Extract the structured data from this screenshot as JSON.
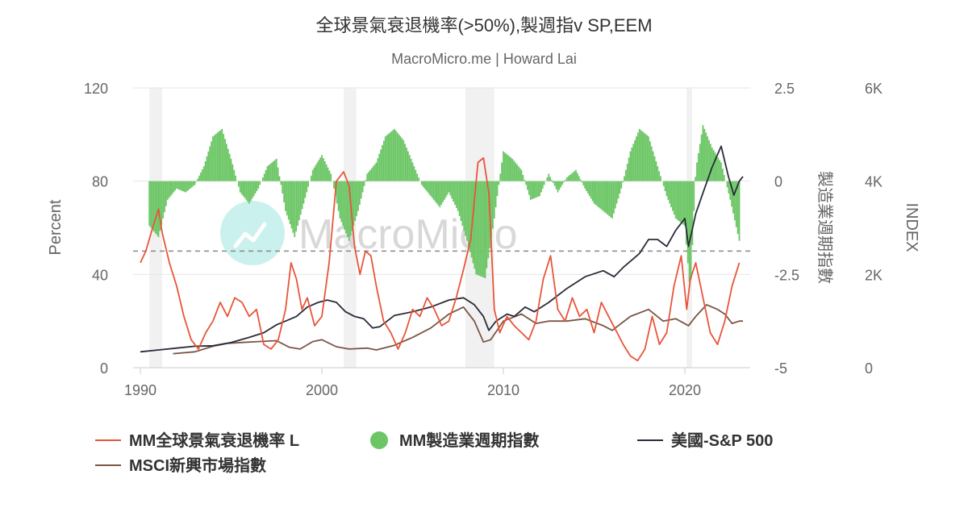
{
  "chart_data": {
    "type": "line",
    "title": "全球景氣衰退機率(>50%),製週指v SP,EEM",
    "subtitle": "MacroMicro.me | Howard Lai",
    "watermark": "MacroMicro",
    "x_axis": {
      "ticks": [
        "1990",
        "2000",
        "2010",
        "2020"
      ],
      "range": [
        1989.6,
        2023.6
      ]
    },
    "y_axes": {
      "left": {
        "title": "Percent",
        "ticks": [
          "120",
          "80",
          "40",
          "0"
        ],
        "range": [
          0,
          120
        ]
      },
      "mid": {
        "title": "製造業週期指數",
        "ticks": [
          "2.5",
          "0",
          "-2.5",
          "-5"
        ],
        "range": [
          -5,
          2.5
        ]
      },
      "right": {
        "title": "INDEX",
        "ticks": [
          "6K",
          "4K",
          "2K",
          "0"
        ],
        "range": [
          0,
          6000
        ]
      }
    },
    "threshold_line": {
      "axis": "left",
      "value": 50,
      "style": "dashed"
    },
    "recession_bands": [
      [
        1990.5,
        1991.2
      ],
      [
        2001.2,
        2001.9
      ],
      [
        2007.9,
        2009.5
      ],
      [
        2020.1,
        2020.4
      ]
    ],
    "legend": [
      {
        "name": "MM全球景氣衰退機率 L",
        "color": "#e8553a",
        "symbol": "line"
      },
      {
        "name": "MM製造業週期指數",
        "color": "#6cc665",
        "symbol": "circle"
      },
      {
        "name": "美國-S&P 500",
        "color": "#2b2b3a",
        "symbol": "line"
      },
      {
        "name": "MSCI新興市場指數",
        "color": "#7b5545",
        "symbol": "line"
      }
    ],
    "series": [
      {
        "name": "MM全球景氣衰退機率 L",
        "axis": "left",
        "type": "line",
        "color": "#e8553a",
        "x": [
          1990.0,
          1990.3,
          1990.6,
          1991.0,
          1991.2,
          1991.6,
          1992.0,
          1992.4,
          1992.8,
          1993.2,
          1993.6,
          1994.0,
          1994.4,
          1994.8,
          1995.2,
          1995.6,
          1996.0,
          1996.4,
          1996.8,
          1997.2,
          1997.6,
          1998.0,
          1998.3,
          1998.6,
          1998.9,
          1999.2,
          1999.6,
          2000.0,
          2000.4,
          2000.8,
          2001.2,
          2001.5,
          2001.8,
          2002.1,
          2002.4,
          2002.7,
          2003.0,
          2003.4,
          2003.8,
          2004.2,
          2004.6,
          2005.0,
          2005.4,
          2005.8,
          2006.2,
          2006.6,
          2007.0,
          2007.4,
          2007.8,
          2008.2,
          2008.6,
          2008.9,
          2009.2,
          2009.5,
          2009.8,
          2010.2,
          2010.6,
          2011.0,
          2011.4,
          2011.8,
          2012.2,
          2012.6,
          2013.0,
          2013.4,
          2013.8,
          2014.2,
          2014.6,
          2015.0,
          2015.4,
          2015.8,
          2016.2,
          2016.6,
          2017.0,
          2017.4,
          2017.8,
          2018.2,
          2018.6,
          2019.0,
          2019.4,
          2019.8,
          2020.1,
          2020.3,
          2020.6,
          2021.0,
          2021.4,
          2021.8,
          2022.2,
          2022.6,
          2023.0
        ],
        "y": [
          45,
          50,
          58,
          68,
          58,
          45,
          35,
          22,
          12,
          8,
          15,
          20,
          28,
          22,
          30,
          28,
          22,
          25,
          10,
          8,
          12,
          25,
          45,
          38,
          25,
          30,
          18,
          22,
          45,
          80,
          84,
          78,
          52,
          40,
          50,
          48,
          35,
          20,
          15,
          8,
          15,
          25,
          22,
          30,
          25,
          18,
          20,
          30,
          42,
          55,
          88,
          90,
          75,
          25,
          15,
          22,
          18,
          15,
          12,
          20,
          38,
          48,
          25,
          20,
          30,
          22,
          25,
          15,
          28,
          22,
          16,
          10,
          5,
          3,
          8,
          22,
          10,
          15,
          35,
          48,
          25,
          38,
          45,
          30,
          15,
          10,
          20,
          35,
          45
        ]
      },
      {
        "name": "MM製造業週期指數",
        "axis": "mid",
        "type": "bar",
        "color": "#6cc665",
        "x": [
          1990.5,
          1991.0,
          1991.5,
          1992.0,
          1992.5,
          1993.0,
          1993.5,
          1994.0,
          1994.5,
          1995.0,
          1995.5,
          1996.0,
          1996.5,
          1997.0,
          1997.5,
          1998.0,
          1998.5,
          1999.0,
          1999.5,
          2000.0,
          2000.5,
          2001.0,
          2001.5,
          2002.0,
          2002.5,
          2003.0,
          2003.5,
          2004.0,
          2004.5,
          2005.0,
          2005.5,
          2006.0,
          2006.5,
          2007.0,
          2007.5,
          2008.0,
          2008.5,
          2009.0,
          2009.5,
          2010.0,
          2010.5,
          2011.0,
          2011.5,
          2012.0,
          2012.5,
          2013.0,
          2013.5,
          2014.0,
          2014.5,
          2015.0,
          2015.5,
          2016.0,
          2016.5,
          2017.0,
          2017.5,
          2018.0,
          2018.5,
          2019.0,
          2019.5,
          2020.0,
          2020.3,
          2020.6,
          2021.0,
          2021.5,
          2022.0,
          2022.5,
          2023.0
        ],
        "y": [
          -1.2,
          -1.5,
          -0.5,
          -0.2,
          -0.3,
          -0.1,
          0.4,
          1.2,
          1.4,
          0.6,
          -0.3,
          -0.6,
          -0.2,
          0.4,
          0.6,
          -0.8,
          -1.5,
          -0.6,
          0.3,
          0.7,
          0.2,
          -1.0,
          -1.6,
          -0.8,
          0.2,
          0.5,
          1.2,
          1.4,
          1.1,
          0.5,
          -0.1,
          -0.4,
          -0.7,
          -0.3,
          -0.8,
          -1.6,
          -2.5,
          -2.6,
          -1.0,
          0.8,
          0.6,
          0.3,
          -0.5,
          -0.4,
          0.2,
          -0.3,
          0.1,
          0.3,
          -0.2,
          -0.6,
          -0.8,
          -1.0,
          -0.2,
          0.8,
          1.4,
          1.2,
          0.4,
          -0.4,
          -1.0,
          -1.2,
          -3.0,
          0.3,
          1.5,
          0.9,
          0.5,
          -0.5,
          -1.6
        ]
      },
      {
        "name": "美國-S&P 500",
        "axis": "right",
        "type": "line",
        "color": "#2b2b3a",
        "x": [
          1990.0,
          1991.0,
          1992.0,
          1993.0,
          1994.0,
          1995.0,
          1996.0,
          1996.8,
          1997.5,
          1998.0,
          1998.6,
          1999.2,
          1999.8,
          2000.3,
          2000.8,
          2001.3,
          2001.8,
          2002.3,
          2002.8,
          2003.2,
          2004.0,
          2005.0,
          2006.0,
          2007.0,
          2007.8,
          2008.4,
          2008.9,
          2009.2,
          2009.6,
          2010.2,
          2010.6,
          2011.2,
          2011.7,
          2012.5,
          2013.5,
          2014.5,
          2015.5,
          2016.1,
          2016.6,
          2017.5,
          2018.0,
          2018.5,
          2019.0,
          2019.5,
          2020.0,
          2020.2,
          2020.6,
          2021.0,
          2021.5,
          2022.0,
          2022.4,
          2022.7,
          2023.0,
          2023.2
        ],
        "y": [
          340,
          380,
          420,
          460,
          470,
          540,
          650,
          750,
          920,
          1000,
          1100,
          1300,
          1400,
          1450,
          1400,
          1200,
          1100,
          1050,
          850,
          880,
          1120,
          1200,
          1300,
          1450,
          1500,
          1350,
          1100,
          800,
          1000,
          1150,
          1100,
          1300,
          1200,
          1400,
          1700,
          1950,
          2080,
          1950,
          2150,
          2450,
          2750,
          2750,
          2600,
          2950,
          3200,
          2600,
          3300,
          3750,
          4300,
          4750,
          4100,
          3700,
          4000,
          4100
        ]
      },
      {
        "name": "MSCI新興市場指數",
        "axis": "right",
        "type": "line",
        "color": "#7b5545",
        "x": [
          1991.8,
          1993.0,
          1994.0,
          1994.8,
          1995.5,
          1996.5,
          1997.5,
          1998.2,
          1998.8,
          1999.5,
          2000.0,
          2000.8,
          2001.5,
          2002.5,
          2003.0,
          2004.0,
          2005.0,
          2006.0,
          2007.0,
          2007.8,
          2008.4,
          2008.9,
          2009.3,
          2010.0,
          2011.0,
          2011.8,
          2012.5,
          2013.5,
          2014.5,
          2015.5,
          2016.0,
          2017.0,
          2018.0,
          2018.8,
          2019.5,
          2020.2,
          2020.6,
          2021.2,
          2021.8,
          2022.2,
          2022.6,
          2023.0,
          2023.2
        ],
        "y": [
          300,
          340,
          460,
          520,
          540,
          560,
          580,
          440,
          400,
          560,
          600,
          450,
          400,
          420,
          380,
          480,
          650,
          850,
          1150,
          1300,
          1000,
          550,
          600,
          1000,
          1150,
          950,
          1000,
          1000,
          1050,
          900,
          800,
          1100,
          1250,
          1000,
          1050,
          900,
          1100,
          1350,
          1250,
          1150,
          950,
          1000,
          1000
        ]
      }
    ]
  }
}
